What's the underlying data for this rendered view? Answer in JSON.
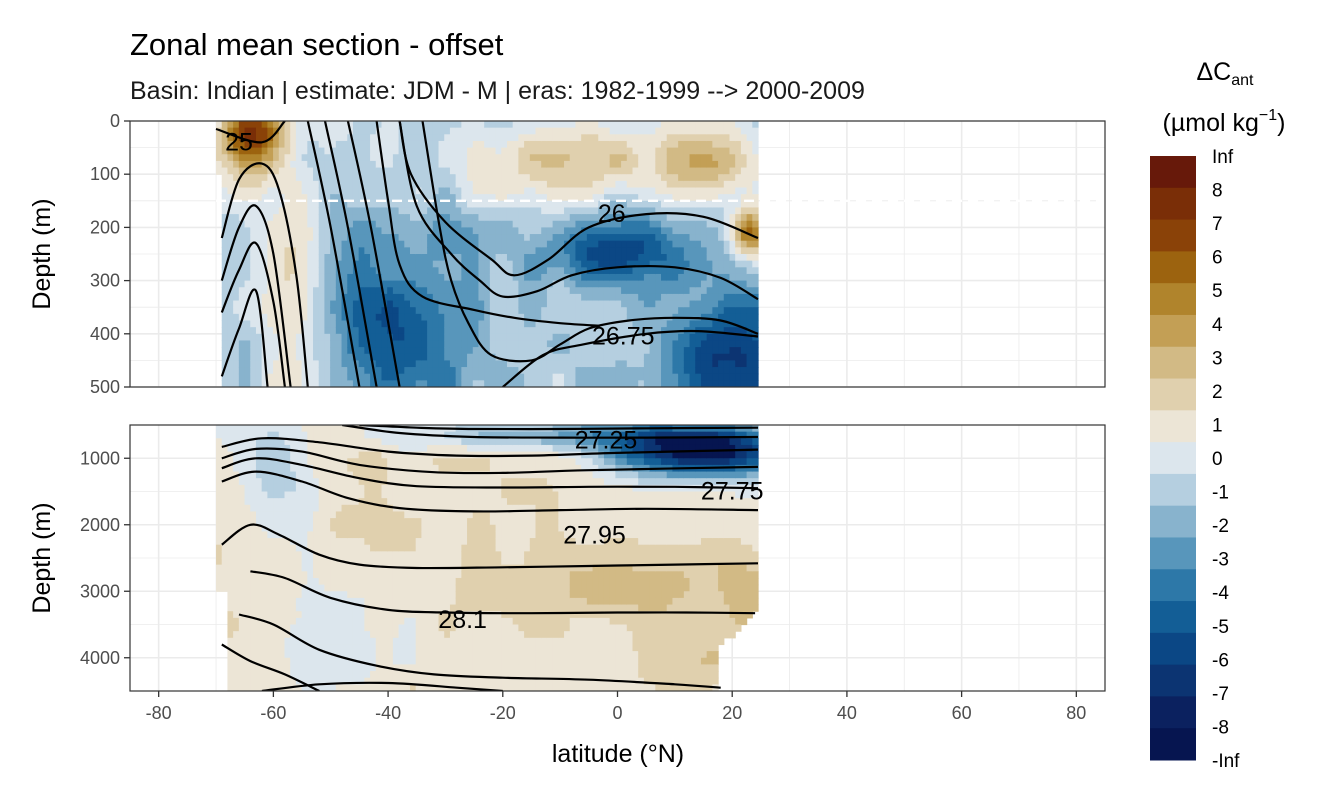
{
  "chart_data": {
    "type": "heatmap",
    "title": "Zonal mean section - offset",
    "subtitle": "Basin: Indian | estimate: JDM - M | eras: 1982-1999 --> 2000-2009",
    "xlabel": "latitude (°N)",
    "x_ticks": [
      "-80",
      "-60",
      "-40",
      "-20",
      "0",
      "20",
      "40",
      "60",
      "80"
    ],
    "xlim": [
      -85,
      85
    ],
    "data_lat_range": [
      -70,
      24.5
    ],
    "legend": {
      "title_main": "ΔC",
      "title_sub": "ant",
      "units_prefix": "(µmol kg",
      "units_sup": "−1",
      "units_suffix": ")",
      "position": "right",
      "labels": [
        "Inf",
        "8",
        "7",
        "6",
        "5",
        "4",
        "3",
        "2",
        "1",
        "0",
        "-1",
        "-2",
        "-3",
        "-4",
        "-5",
        "-6",
        "-7",
        "-8",
        "-Inf"
      ],
      "colors": [
        "#67190a",
        "#7a2e07",
        "#8a4208",
        "#9c630f",
        "#b0842c",
        "#c39f55",
        "#d2ba85",
        "#e0d0ae",
        "#ece5d6",
        "#dce6ed",
        "#b5cfe0",
        "#88b3cd",
        "#5896bb",
        "#2d78a8",
        "#135e96",
        "#0b4785",
        "#0c3472",
        "#0b215f",
        "#061550"
      ]
    },
    "panels": [
      {
        "name": "upper",
        "ylabel": "Depth (m)",
        "ylim": [
          0,
          500
        ],
        "y_ticks": [
          "0",
          "100",
          "200",
          "300",
          "400",
          "500"
        ],
        "reference_depth": 150,
        "contour_labels": [
          {
            "text": "25",
            "lat": -66,
            "depth": 40
          },
          {
            "text": "26",
            "lat": -1,
            "depth": 175
          },
          {
            "text": "26.75",
            "lat": 1,
            "depth": 405
          }
        ],
        "contours": [
          {
            "level": 25,
            "points": [
              [
                -70,
                15
              ],
              [
                -62,
                40
              ],
              [
                -58,
                0
              ]
            ]
          },
          {
            "level": 26,
            "points": [
              [
                -69,
                220
              ],
              [
                -66,
                110
              ],
              [
                -62,
                80
              ],
              [
                -59,
                130
              ],
              [
                -56,
                290
              ],
              [
                -54,
                500
              ]
            ]
          },
          {
            "level": 26.1,
            "points": [
              [
                -69,
                300
              ],
              [
                -66,
                200
              ],
              [
                -63,
                160
              ],
              [
                -60,
                250
              ],
              [
                -57,
                500
              ]
            ]
          },
          {
            "level": 26.2,
            "points": [
              [
                -69,
                360
              ],
              [
                -66,
                280
              ],
              [
                -63,
                230
              ],
              [
                -60,
                340
              ],
              [
                -58,
                500
              ]
            ]
          },
          {
            "level": 26.3,
            "points": [
              [
                -69,
                480
              ],
              [
                -66,
                390
              ],
              [
                -63,
                320
              ],
              [
                -61,
                500
              ]
            ]
          },
          {
            "level": 26.4,
            "points": [
              [
                -54,
                0
              ],
              [
                -50,
                200
              ],
              [
                -45,
                500
              ]
            ]
          },
          {
            "level": 26.5,
            "points": [
              [
                -51,
                0
              ],
              [
                -47,
                200
              ],
              [
                -42,
                500
              ]
            ]
          },
          {
            "level": 26.6,
            "points": [
              [
                -47,
                0
              ],
              [
                -43,
                200
              ],
              [
                -38,
                500
              ]
            ]
          },
          {
            "level": 26.65,
            "points": [
              [
                -42,
                0
              ],
              [
                -40,
                150
              ],
              [
                -38,
                270
              ],
              [
                -34,
                330
              ],
              [
                -25,
                355
              ],
              [
                -18,
                370
              ],
              [
                -10,
                380
              ],
              [
                -3,
                385
              ]
            ]
          },
          {
            "level": 26.0,
            "points": [
              [
                -38,
                0
              ],
              [
                -36,
                100
              ],
              [
                -30,
                190
              ],
              [
                -22,
                260
              ],
              [
                -18,
                290
              ],
              [
                -12,
                260
              ],
              [
                -5,
                200
              ],
              [
                5,
                175
              ],
              [
                15,
                180
              ],
              [
                24.5,
                220
              ]
            ]
          },
          {
            "level": 26.5,
            "points": [
              [
                -38,
                0
              ],
              [
                -35,
                160
              ],
              [
                -29,
                250
              ],
              [
                -24,
                300
              ],
              [
                -20,
                330
              ],
              [
                -14,
                320
              ],
              [
                -8,
                290
              ],
              [
                0,
                275
              ],
              [
                10,
                275
              ],
              [
                18,
                295
              ],
              [
                24.5,
                335
              ]
            ]
          },
          {
            "level": 26.75,
            "points": [
              [
                -34,
                0
              ],
              [
                -31,
                200
              ],
              [
                -29,
                300
              ],
              [
                -26,
                380
              ],
              [
                -22,
                440
              ],
              [
                -15,
                450
              ],
              [
                -10,
                420
              ],
              [
                -5,
                390
              ],
              [
                2,
                375
              ],
              [
                10,
                370
              ],
              [
                18,
                375
              ],
              [
                24.5,
                400
              ]
            ]
          },
          {
            "level": 26.9,
            "points": [
              [
                -20,
                500
              ],
              [
                -13,
                440
              ],
              [
                -6,
                420
              ],
              [
                5,
                400
              ],
              [
                14,
                395
              ],
              [
                24.5,
                405
              ]
            ]
          }
        ]
      },
      {
        "name": "lower",
        "ylabel": "Depth (m)",
        "ylim": [
          500,
          4500
        ],
        "y_ticks": [
          "1000",
          "2000",
          "3000",
          "4000"
        ],
        "contour_labels": [
          {
            "text": "27.25",
            "lat": -2,
            "depth": 730
          },
          {
            "text": "27.75",
            "lat": 20,
            "depth": 1500
          },
          {
            "text": "27.95",
            "lat": -4,
            "depth": 2160
          },
          {
            "text": "28.1",
            "lat": -27,
            "depth": 3430
          }
        ],
        "contours": [
          {
            "level": 27.0,
            "points": [
              [
                -45,
                500
              ],
              [
                -35,
                540
              ],
              [
                -25,
                560
              ],
              [
                -10,
                560
              ],
              [
                5,
                550
              ],
              [
                24.5,
                540
              ]
            ]
          },
          {
            "level": 27.25,
            "points": [
              [
                -48,
                500
              ],
              [
                -38,
                620
              ],
              [
                -25,
                680
              ],
              [
                -10,
                690
              ],
              [
                5,
                690
              ],
              [
                24.5,
                680
              ]
            ]
          },
          {
            "level": 27.4,
            "points": [
              [
                -69,
                830
              ],
              [
                -62,
                700
              ],
              [
                -52,
                760
              ],
              [
                -40,
                900
              ],
              [
                -28,
                960
              ],
              [
                -15,
                960
              ],
              [
                0,
                920
              ],
              [
                24.5,
                870
              ]
            ]
          },
          {
            "level": 27.55,
            "points": [
              [
                -69,
                1000
              ],
              [
                -63,
                860
              ],
              [
                -55,
                900
              ],
              [
                -45,
                1100
              ],
              [
                -32,
                1210
              ],
              [
                -20,
                1220
              ],
              [
                -5,
                1180
              ],
              [
                24.5,
                1130
              ]
            ]
          },
          {
            "level": 27.7,
            "points": [
              [
                -69,
                1150
              ],
              [
                -63,
                1000
              ],
              [
                -55,
                1100
              ],
              [
                -45,
                1300
              ],
              [
                -35,
                1420
              ],
              [
                -20,
                1440
              ],
              [
                -5,
                1430
              ],
              [
                10,
                1430
              ],
              [
                24.5,
                1450
              ]
            ]
          },
          {
            "level": 27.8,
            "points": [
              [
                -69,
                1350
              ],
              [
                -63,
                1200
              ],
              [
                -55,
                1350
              ],
              [
                -47,
                1600
              ],
              [
                -38,
                1750
              ],
              [
                -25,
                1800
              ],
              [
                -10,
                1780
              ],
              [
                5,
                1760
              ],
              [
                24.5,
                1780
              ]
            ]
          },
          {
            "level": 27.95,
            "points": [
              [
                -69,
                2300
              ],
              [
                -64,
                2000
              ],
              [
                -59,
                2150
              ],
              [
                -52,
                2450
              ],
              [
                -45,
                2600
              ],
              [
                -35,
                2650
              ],
              [
                -20,
                2640
              ],
              [
                -5,
                2620
              ],
              [
                10,
                2600
              ],
              [
                24.5,
                2580
              ]
            ]
          },
          {
            "level": 28.0,
            "points": [
              [
                -64,
                2700
              ],
              [
                -58,
                2800
              ],
              [
                -50,
                3100
              ],
              [
                -40,
                3280
              ],
              [
                -30,
                3320
              ],
              [
                -15,
                3330
              ],
              [
                0,
                3320
              ],
              [
                12,
                3320
              ],
              [
                24,
                3330
              ]
            ]
          },
          {
            "level": 28.1,
            "points": [
              [
                -66,
                3350
              ],
              [
                -60,
                3500
              ],
              [
                -52,
                3880
              ],
              [
                -42,
                4120
              ],
              [
                -32,
                4250
              ],
              [
                -20,
                4300
              ],
              [
                -5,
                4330
              ],
              [
                10,
                4400
              ],
              [
                18,
                4450
              ]
            ]
          },
          {
            "level": 28.15,
            "points": [
              [
                -69,
                3800
              ],
              [
                -64,
                4050
              ],
              [
                -58,
                4250
              ],
              [
                -52,
                4500
              ]
            ]
          },
          {
            "level": 28.2,
            "points": [
              [
                -62,
                4500
              ],
              [
                -52,
                4400
              ],
              [
                -40,
                4380
              ],
              [
                -28,
                4450
              ],
              [
                -20,
                4500
              ]
            ]
          }
        ]
      }
    ]
  }
}
